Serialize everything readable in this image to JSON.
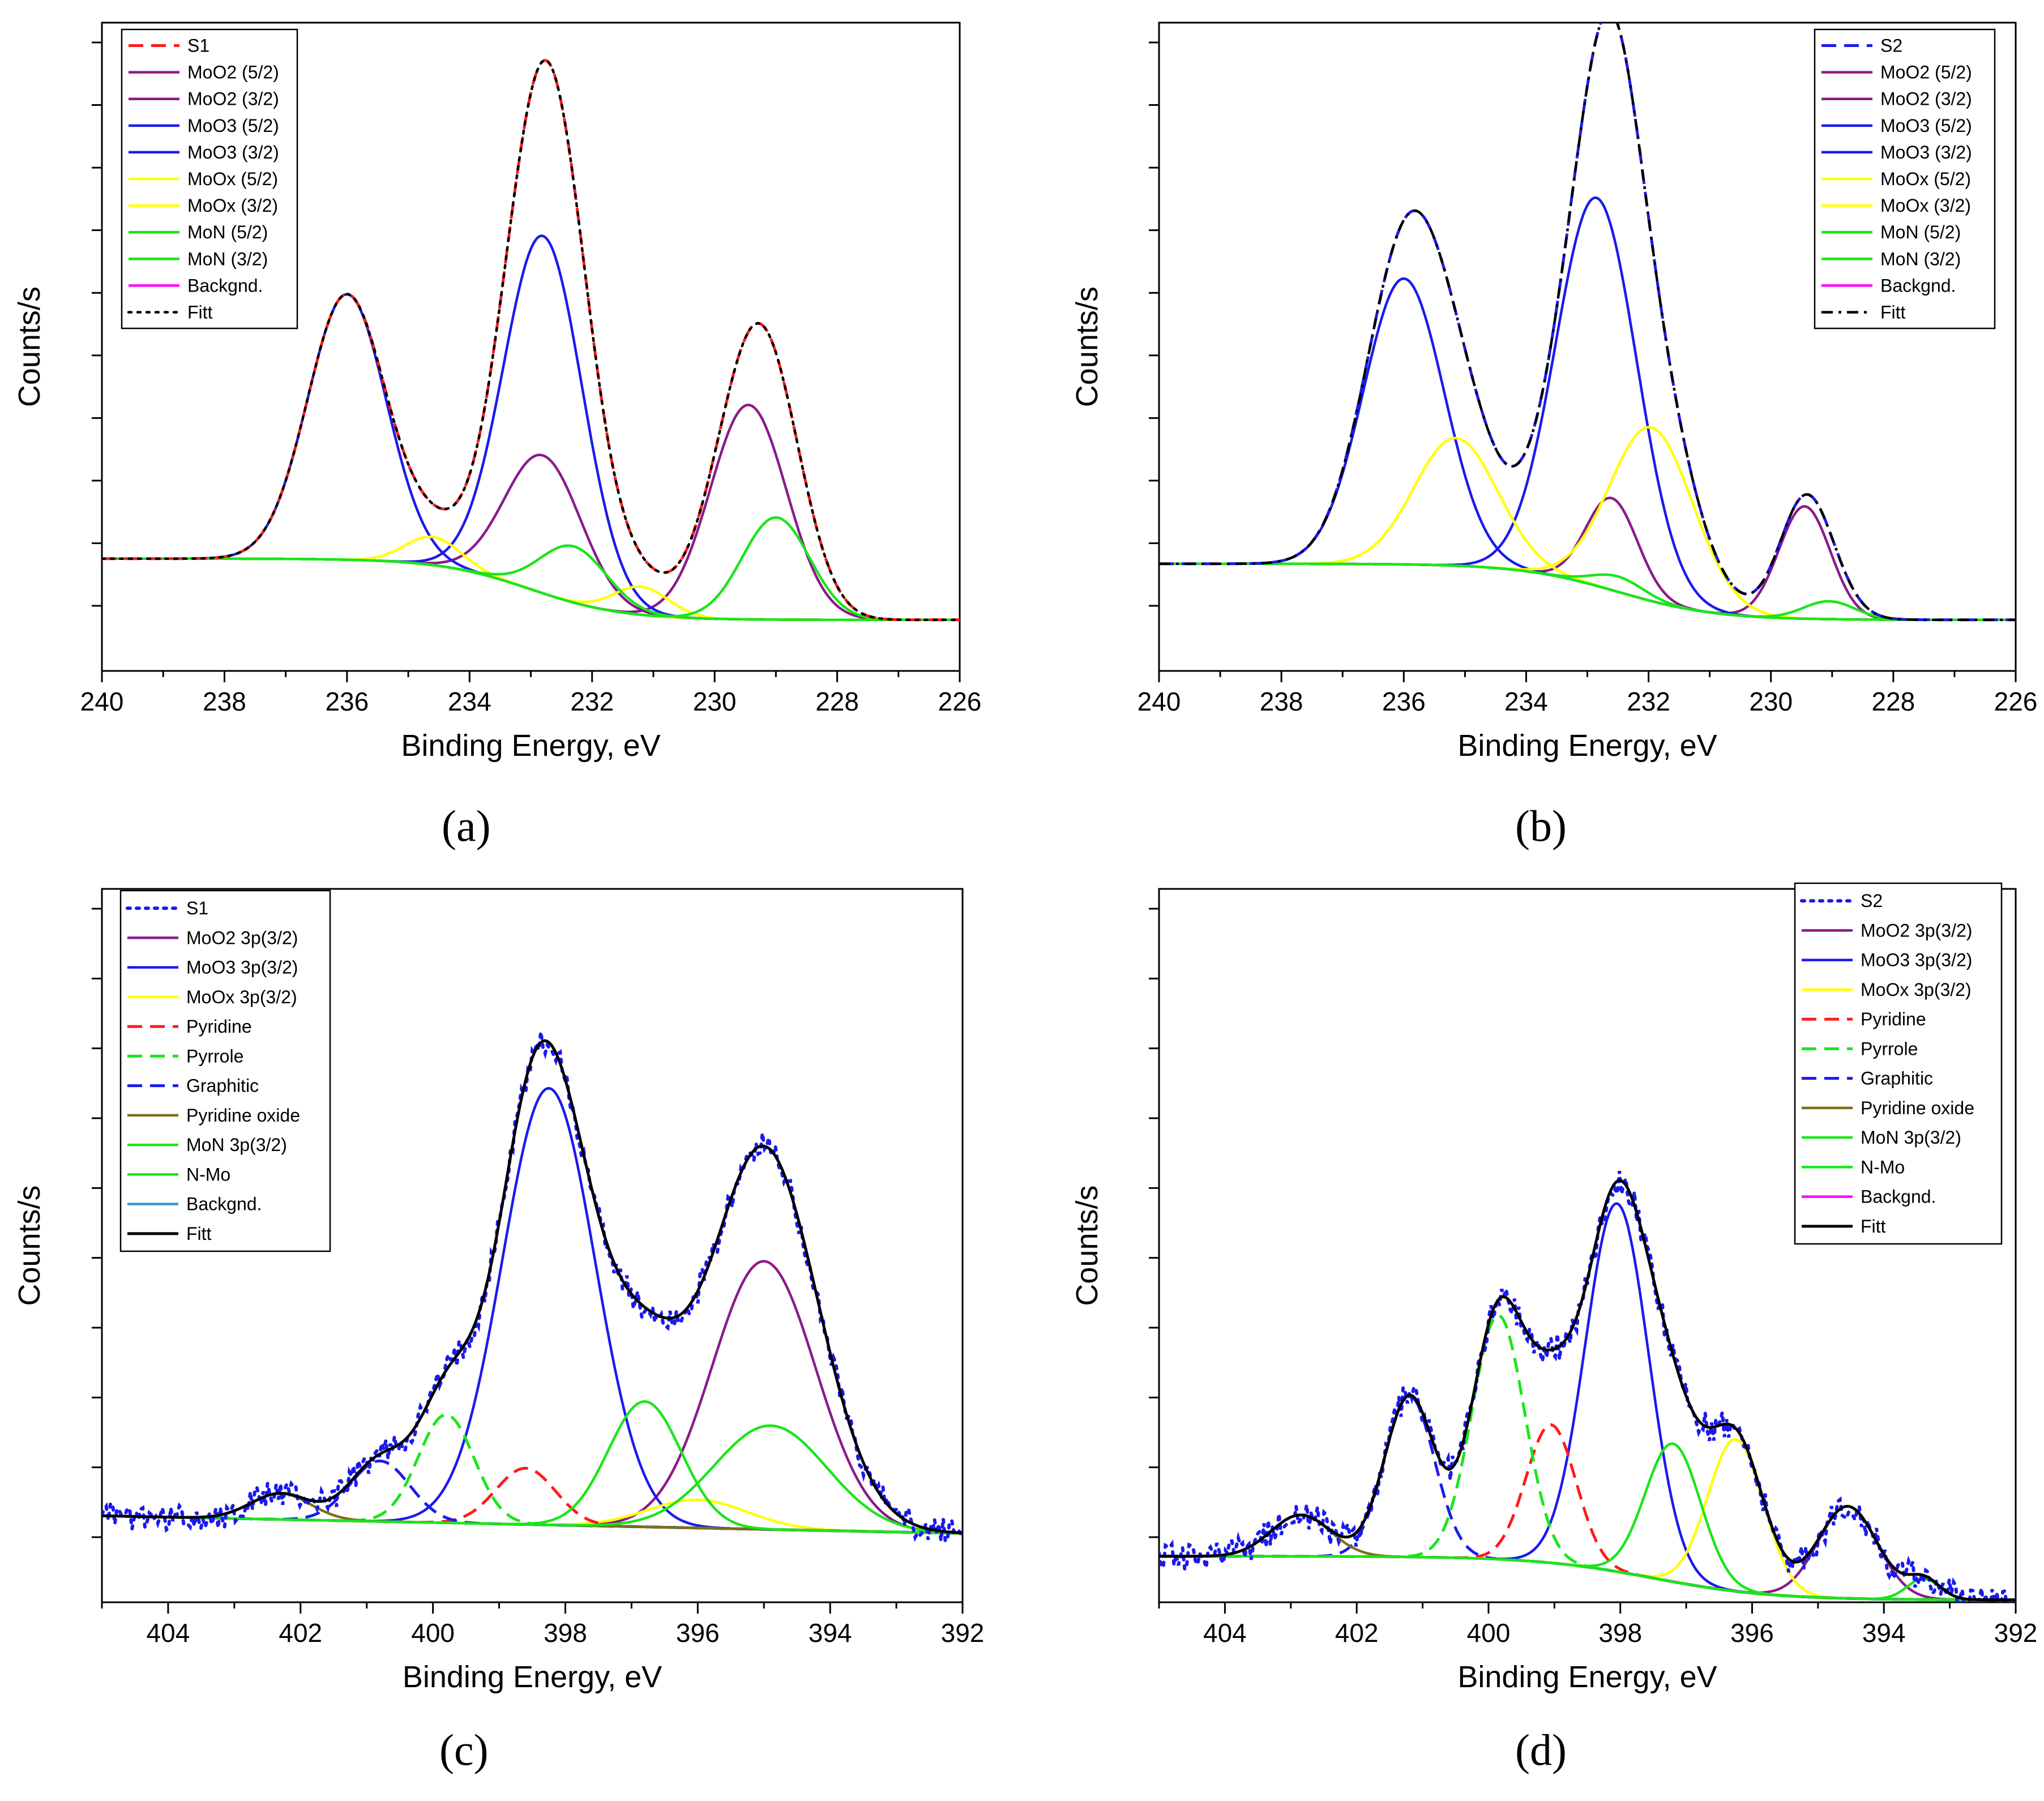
{
  "figure": {
    "panels": [
      {
        "letter": "a",
        "caption": "(a)"
      },
      {
        "letter": "b",
        "caption": "(b)"
      },
      {
        "letter": "c",
        "caption": "(c)"
      },
      {
        "letter": "d",
        "caption": "(d)"
      }
    ]
  },
  "colors": {
    "red": "#ff1a1a",
    "purple": "#8b1a8b",
    "blue": "#1a1aee",
    "yellow": "#ffff00",
    "green": "#19e619",
    "magenta": "#ff00ff",
    "black": "#000000",
    "olive": "#7a7015",
    "steel": "#3c96d2"
  },
  "chart_data": [
    {
      "panel": "a",
      "type": "line",
      "xlabel": "Binding Energy, eV",
      "ylabel": "Counts/s",
      "xlim": [
        240,
        226
      ],
      "xticks": [
        240,
        238,
        236,
        234,
        232,
        230,
        228,
        226
      ],
      "ylim": [
        -0.22,
        1.05
      ],
      "legend_position": "top-left",
      "series": [
        {
          "name": "S1",
          "color": "#ff1a1a",
          "dash": "dash",
          "width": 5,
          "kind": "envelope",
          "comps": [
            0,
            1,
            2,
            3,
            4,
            5,
            6,
            7
          ]
        },
        {
          "name": "MoO2 (5/2)",
          "color": "#8b1a8b",
          "dash": "solid",
          "width": 4.5,
          "peak": [
            229.45,
            0.42,
            0.62
          ]
        },
        {
          "name": "MoO2 (3/2)",
          "color": "#8b1a8b",
          "dash": "solid",
          "width": 4.5,
          "peak": [
            232.8,
            0.27,
            0.62
          ]
        },
        {
          "name": "MoO3 (5/2)",
          "color": "#1a1aee",
          "dash": "solid",
          "width": 4.5,
          "peak": [
            232.8,
            0.7,
            0.64
          ]
        },
        {
          "name": "MoO3 (3/2)",
          "color": "#1a1aee",
          "dash": "solid",
          "width": 4.5,
          "peak": [
            236.0,
            0.52,
            0.64
          ]
        },
        {
          "name": "MoOx (5/2)",
          "color": "#ffff00",
          "dash": "solid",
          "width": 4.5,
          "peak": [
            231.2,
            0.055,
            0.45
          ]
        },
        {
          "name": "MoOx (3/2)",
          "color": "#ffff00",
          "dash": "solid",
          "width": 4.5,
          "peak": [
            234.6,
            0.055,
            0.45
          ]
        },
        {
          "name": "MoN (5/2)",
          "color": "#19e619",
          "dash": "solid",
          "width": 4.5,
          "peak": [
            229.0,
            0.2,
            0.55
          ]
        },
        {
          "name": "MoN (3/2)",
          "color": "#19e619",
          "dash": "solid",
          "width": 4.5,
          "peak": [
            232.3,
            0.11,
            0.55
          ]
        },
        {
          "name": "Backgnd.",
          "color": "#ff00ff",
          "dash": "solid",
          "width": 4.5,
          "kind": "background",
          "bg": [
            0.0,
            -0.12,
            233.0,
            0.75
          ]
        },
        {
          "name": "Fitt",
          "color": "#000000",
          "dash": "dot",
          "width": 4.5,
          "kind": "envelope",
          "comps": [
            0,
            1,
            2,
            3,
            4,
            5,
            6,
            7
          ]
        }
      ]
    },
    {
      "panel": "b",
      "type": "line",
      "xlabel": "Binding Energy, eV",
      "ylabel": "Counts/s",
      "xlim": [
        240,
        226
      ],
      "xticks": [
        240,
        238,
        236,
        234,
        232,
        230,
        228,
        226
      ],
      "ylim": [
        -0.22,
        1.05
      ],
      "legend_position": "top-right",
      "series": [
        {
          "name": "S2",
          "color": "#1a1aee",
          "dash": "dash",
          "width": 5,
          "kind": "envelope",
          "comps": [
            0,
            1,
            2,
            3,
            4,
            5,
            6,
            7
          ]
        },
        {
          "name": "MoO2 (5/2)",
          "color": "#8b1a8b",
          "dash": "solid",
          "width": 4.5,
          "peak": [
            229.45,
            0.22,
            0.42
          ]
        },
        {
          "name": "MoO2 (3/2)",
          "color": "#8b1a8b",
          "dash": "solid",
          "width": 4.5,
          "peak": [
            232.6,
            0.18,
            0.42
          ]
        },
        {
          "name": "MoO3 (5/2)",
          "color": "#1a1aee",
          "dash": "solid",
          "width": 4.5,
          "peak": [
            232.85,
            0.76,
            0.66
          ]
        },
        {
          "name": "MoO3 (3/2)",
          "color": "#1a1aee",
          "dash": "solid",
          "width": 4.5,
          "peak": [
            236.0,
            0.56,
            0.66
          ]
        },
        {
          "name": "MoOx (5/2)",
          "color": "#ffff00",
          "dash": "solid",
          "width": 4.5,
          "peak": [
            231.95,
            0.34,
            0.68
          ]
        },
        {
          "name": "MoOx (3/2)",
          "color": "#ffff00",
          "dash": "solid",
          "width": 4.5,
          "peak": [
            235.15,
            0.25,
            0.68
          ]
        },
        {
          "name": "MoN (5/2)",
          "color": "#19e619",
          "dash": "solid",
          "width": 4.5,
          "peak": [
            229.05,
            0.035,
            0.42
          ]
        },
        {
          "name": "MoN (3/2)",
          "color": "#19e619",
          "dash": "solid",
          "width": 4.5,
          "peak": [
            232.5,
            0.03,
            0.42
          ]
        },
        {
          "name": "Backgnd.",
          "color": "#ff00ff",
          "dash": "solid",
          "width": 4.5,
          "kind": "background",
          "bg": [
            -0.01,
            -0.12,
            232.5,
            0.8
          ]
        },
        {
          "name": "Fitt",
          "color": "#000000",
          "dash": "dashdot",
          "width": 4.5,
          "kind": "envelope",
          "comps": [
            0,
            1,
            2,
            3,
            4,
            5,
            6,
            7
          ]
        }
      ]
    },
    {
      "panel": "c",
      "type": "line",
      "xlabel": "Binding Energy, eV",
      "ylabel": "Counts/s",
      "xlim": [
        405,
        392
      ],
      "xticks": [
        404,
        402,
        400,
        398,
        396,
        394,
        392
      ],
      "ylim": [
        -0.2,
        1.45
      ],
      "legend_position": "top-left",
      "series": [
        {
          "name": "S1",
          "color": "#1a1aee",
          "dash": "dot",
          "width": 6,
          "kind": "data",
          "comps": [
            0,
            1,
            2,
            3,
            4,
            5,
            6,
            7,
            8
          ]
        },
        {
          "name": "MoO2 3p(3/2)",
          "color": "#8b1a8b",
          "dash": "solid",
          "width": 4.5,
          "peak": [
            395.0,
            0.62,
            0.78
          ]
        },
        {
          "name": "MoO3 3p(3/2)",
          "color": "#1a1aee",
          "dash": "solid",
          "width": 4.5,
          "peak": [
            398.25,
            1.01,
            0.7
          ]
        },
        {
          "name": "MoOx 3p(3/2)",
          "color": "#ffff00",
          "dash": "solid",
          "width": 4.5,
          "peak": [
            396.0,
            0.065,
            0.75
          ]
        },
        {
          "name": "Pyridine",
          "color": "#ff1a1a",
          "dash": "dash",
          "width": 5,
          "peak": [
            398.6,
            0.13,
            0.45
          ]
        },
        {
          "name": "Pyrrole",
          "color": "#19e619",
          "dash": "dash",
          "width": 5,
          "peak": [
            399.8,
            0.25,
            0.42
          ]
        },
        {
          "name": "Graphitic",
          "color": "#1a1aee",
          "dash": "dash",
          "width": 5,
          "peak": [
            400.8,
            0.14,
            0.45
          ]
        },
        {
          "name": "Pyridine oxide",
          "color": "#7a7015",
          "dash": "solid",
          "width": 4.5,
          "peak": [
            402.3,
            0.06,
            0.45
          ]
        },
        {
          "name": "MoN 3p(3/2)",
          "color": "#19e619",
          "dash": "solid",
          "width": 4.5,
          "peak": [
            396.8,
            0.29,
            0.55
          ]
        },
        {
          "name": "N-Mo",
          "color": "#19e619",
          "dash": "solid",
          "width": 4.5,
          "peak": [
            394.9,
            0.24,
            0.85
          ]
        },
        {
          "name": "Backgnd.",
          "color": "#3c96d2",
          "dash": "solid",
          "width": 4.5,
          "kind": "linear",
          "bg": [
            405.0,
            0.0,
            392.2,
            -0.04
          ]
        },
        {
          "name": "Fitt",
          "color": "#000000",
          "dash": "solid",
          "width": 5,
          "kind": "envelope",
          "comps": [
            0,
            1,
            2,
            3,
            4,
            5,
            6,
            7,
            8
          ]
        }
      ]
    },
    {
      "panel": "d",
      "type": "line",
      "xlabel": "Binding Energy, eV",
      "ylabel": "Counts/s",
      "xlim": [
        405,
        392
      ],
      "xticks": [
        404,
        402,
        400,
        398,
        396,
        394,
        392
      ],
      "ylim": [
        -0.1,
        1.45
      ],
      "legend_position": "top-right",
      "series": [
        {
          "name": "S2",
          "color": "#1a1aee",
          "dash": "dot",
          "width": 6,
          "kind": "data",
          "comps": [
            0,
            1,
            2,
            3,
            4,
            5,
            6,
            7,
            8
          ]
        },
        {
          "name": "MoO2 3p(3/2)",
          "color": "#8b1a8b",
          "dash": "solid",
          "width": 4.5,
          "peak": [
            394.55,
            0.2,
            0.45
          ]
        },
        {
          "name": "MoO3 3p(3/2)",
          "color": "#1a1aee",
          "dash": "solid",
          "width": 4.5,
          "peak": [
            398.05,
            0.8,
            0.48
          ]
        },
        {
          "name": "MoOx 3p(3/2)",
          "color": "#ffff00",
          "dash": "solid",
          "width": 4.5,
          "peak": [
            396.25,
            0.33,
            0.42
          ]
        },
        {
          "name": "Pyridine",
          "color": "#ff1a1a",
          "dash": "dash",
          "width": 5,
          "peak": [
            399.05,
            0.3,
            0.38
          ]
        },
        {
          "name": "Pyrrole",
          "color": "#19e619",
          "dash": "dash",
          "width": 5,
          "peak": [
            399.85,
            0.53,
            0.4
          ]
        },
        {
          "name": "Graphitic",
          "color": "#1a1aee",
          "dash": "dash",
          "width": 5,
          "peak": [
            401.2,
            0.35,
            0.38
          ]
        },
        {
          "name": "Pyridine oxide",
          "color": "#7a7015",
          "dash": "solid",
          "width": 4.5,
          "peak": [
            402.85,
            0.09,
            0.45
          ]
        },
        {
          "name": "MoN 3p(3/2)",
          "color": "#19e619",
          "dash": "solid",
          "width": 4.5,
          "peak": [
            393.4,
            0.045,
            0.25
          ]
        },
        {
          "name": "N-Mo",
          "color": "#19e619",
          "dash": "solid",
          "width": 4.5,
          "peak": [
            397.2,
            0.3,
            0.42
          ]
        },
        {
          "name": "Backgnd.",
          "color": "#ff00ff",
          "dash": "solid",
          "width": 4.5,
          "kind": "background",
          "bg": [
            0.0,
            -0.095,
            397.5,
            0.9
          ]
        },
        {
          "name": "Fitt",
          "color": "#000000",
          "dash": "solid",
          "width": 5,
          "kind": "envelope",
          "comps": [
            0,
            1,
            2,
            3,
            4,
            5,
            6,
            7,
            8
          ]
        }
      ]
    }
  ]
}
